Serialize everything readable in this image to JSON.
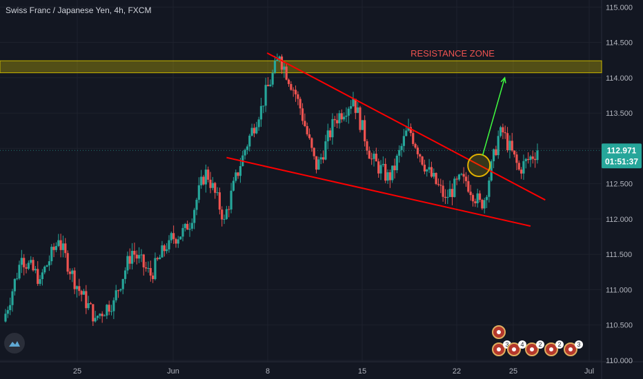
{
  "header": {
    "title": "Swiss Franc / Japanese Yen, 4h, FXCM"
  },
  "colors": {
    "background": "#131722",
    "up": "#26a69a",
    "down": "#ef5350",
    "trendline": "#ff0000",
    "zone": "#c8b400",
    "target": "#40ff40",
    "text": "#d1d4dc"
  },
  "annotations": {
    "resistance_label": "RESISTANCE ZONE"
  },
  "price_tag": {
    "price": "112.971",
    "countdown": "01:51:37"
  },
  "event_badges": [
    {
      "icon": "flag-icon",
      "count": ""
    },
    {
      "icon": "plus-icon",
      "count": "3"
    },
    {
      "icon": "flag-icon",
      "count": "4"
    },
    {
      "icon": "flag-icon",
      "count": "2"
    },
    {
      "icon": "flag-icon",
      "count": "2"
    },
    {
      "icon": "flag-icon",
      "count": "3"
    }
  ],
  "chart_data": {
    "type": "candlestick",
    "symbol": "CHFJPY",
    "interval": "4h",
    "source": "FXCM",
    "x_axis": {
      "ticks": [
        "25",
        "Jun",
        "8",
        "15",
        "22",
        "25",
        "Jul"
      ]
    },
    "y_axis": {
      "range": [
        109.98,
        115.1
      ],
      "ticks": [
        "110.000",
        "110.500",
        "111.000",
        "111.500",
        "112.000",
        "112.500",
        "113.000",
        "113.500",
        "114.000",
        "114.500",
        "115.000"
      ]
    },
    "candles_approx": [
      [
        110.55,
        111.45
      ],
      [
        111.45,
        111.15
      ],
      [
        111.15,
        111.7
      ],
      [
        111.7,
        111.05
      ],
      [
        111.05,
        110.6
      ],
      [
        110.6,
        110.85
      ],
      [
        110.85,
        111.55
      ],
      [
        111.55,
        111.2
      ],
      [
        111.2,
        111.7
      ],
      [
        111.7,
        111.85
      ],
      [
        111.85,
        112.7
      ],
      [
        112.7,
        112.0
      ],
      [
        112.0,
        112.9
      ],
      [
        112.9,
        113.6
      ],
      [
        113.6,
        114.3
      ],
      [
        114.3,
        113.7
      ],
      [
        113.7,
        112.7
      ],
      [
        112.7,
        113.4
      ],
      [
        113.4,
        113.7
      ],
      [
        113.7,
        112.85
      ],
      [
        112.85,
        112.55
      ],
      [
        112.55,
        113.3
      ],
      [
        113.3,
        112.7
      ],
      [
        112.7,
        112.3
      ],
      [
        112.3,
        112.6
      ],
      [
        112.6,
        112.15
      ],
      [
        112.15,
        113.3
      ],
      [
        113.3,
        112.7
      ],
      [
        112.7,
        112.97
      ]
    ],
    "resistance_zone": {
      "top": 114.24,
      "bottom": 114.07
    },
    "trendlines": [
      {
        "name": "upper",
        "from": {
          "bar": 14.2,
          "price": 114.35
        },
        "to": {
          "bar": 29.3,
          "price": 112.27
        }
      },
      {
        "name": "lower",
        "from": {
          "bar": 12.0,
          "price": 112.87
        },
        "to": {
          "bar": 28.5,
          "price": 111.9
        }
      }
    ],
    "projection": {
      "from": {
        "bar": 25.9,
        "price": 112.9
      },
      "to": {
        "bar": 27.1,
        "price": 114.0
      }
    },
    "breakout_marker": {
      "bar": 25.7,
      "price": 112.76
    }
  }
}
